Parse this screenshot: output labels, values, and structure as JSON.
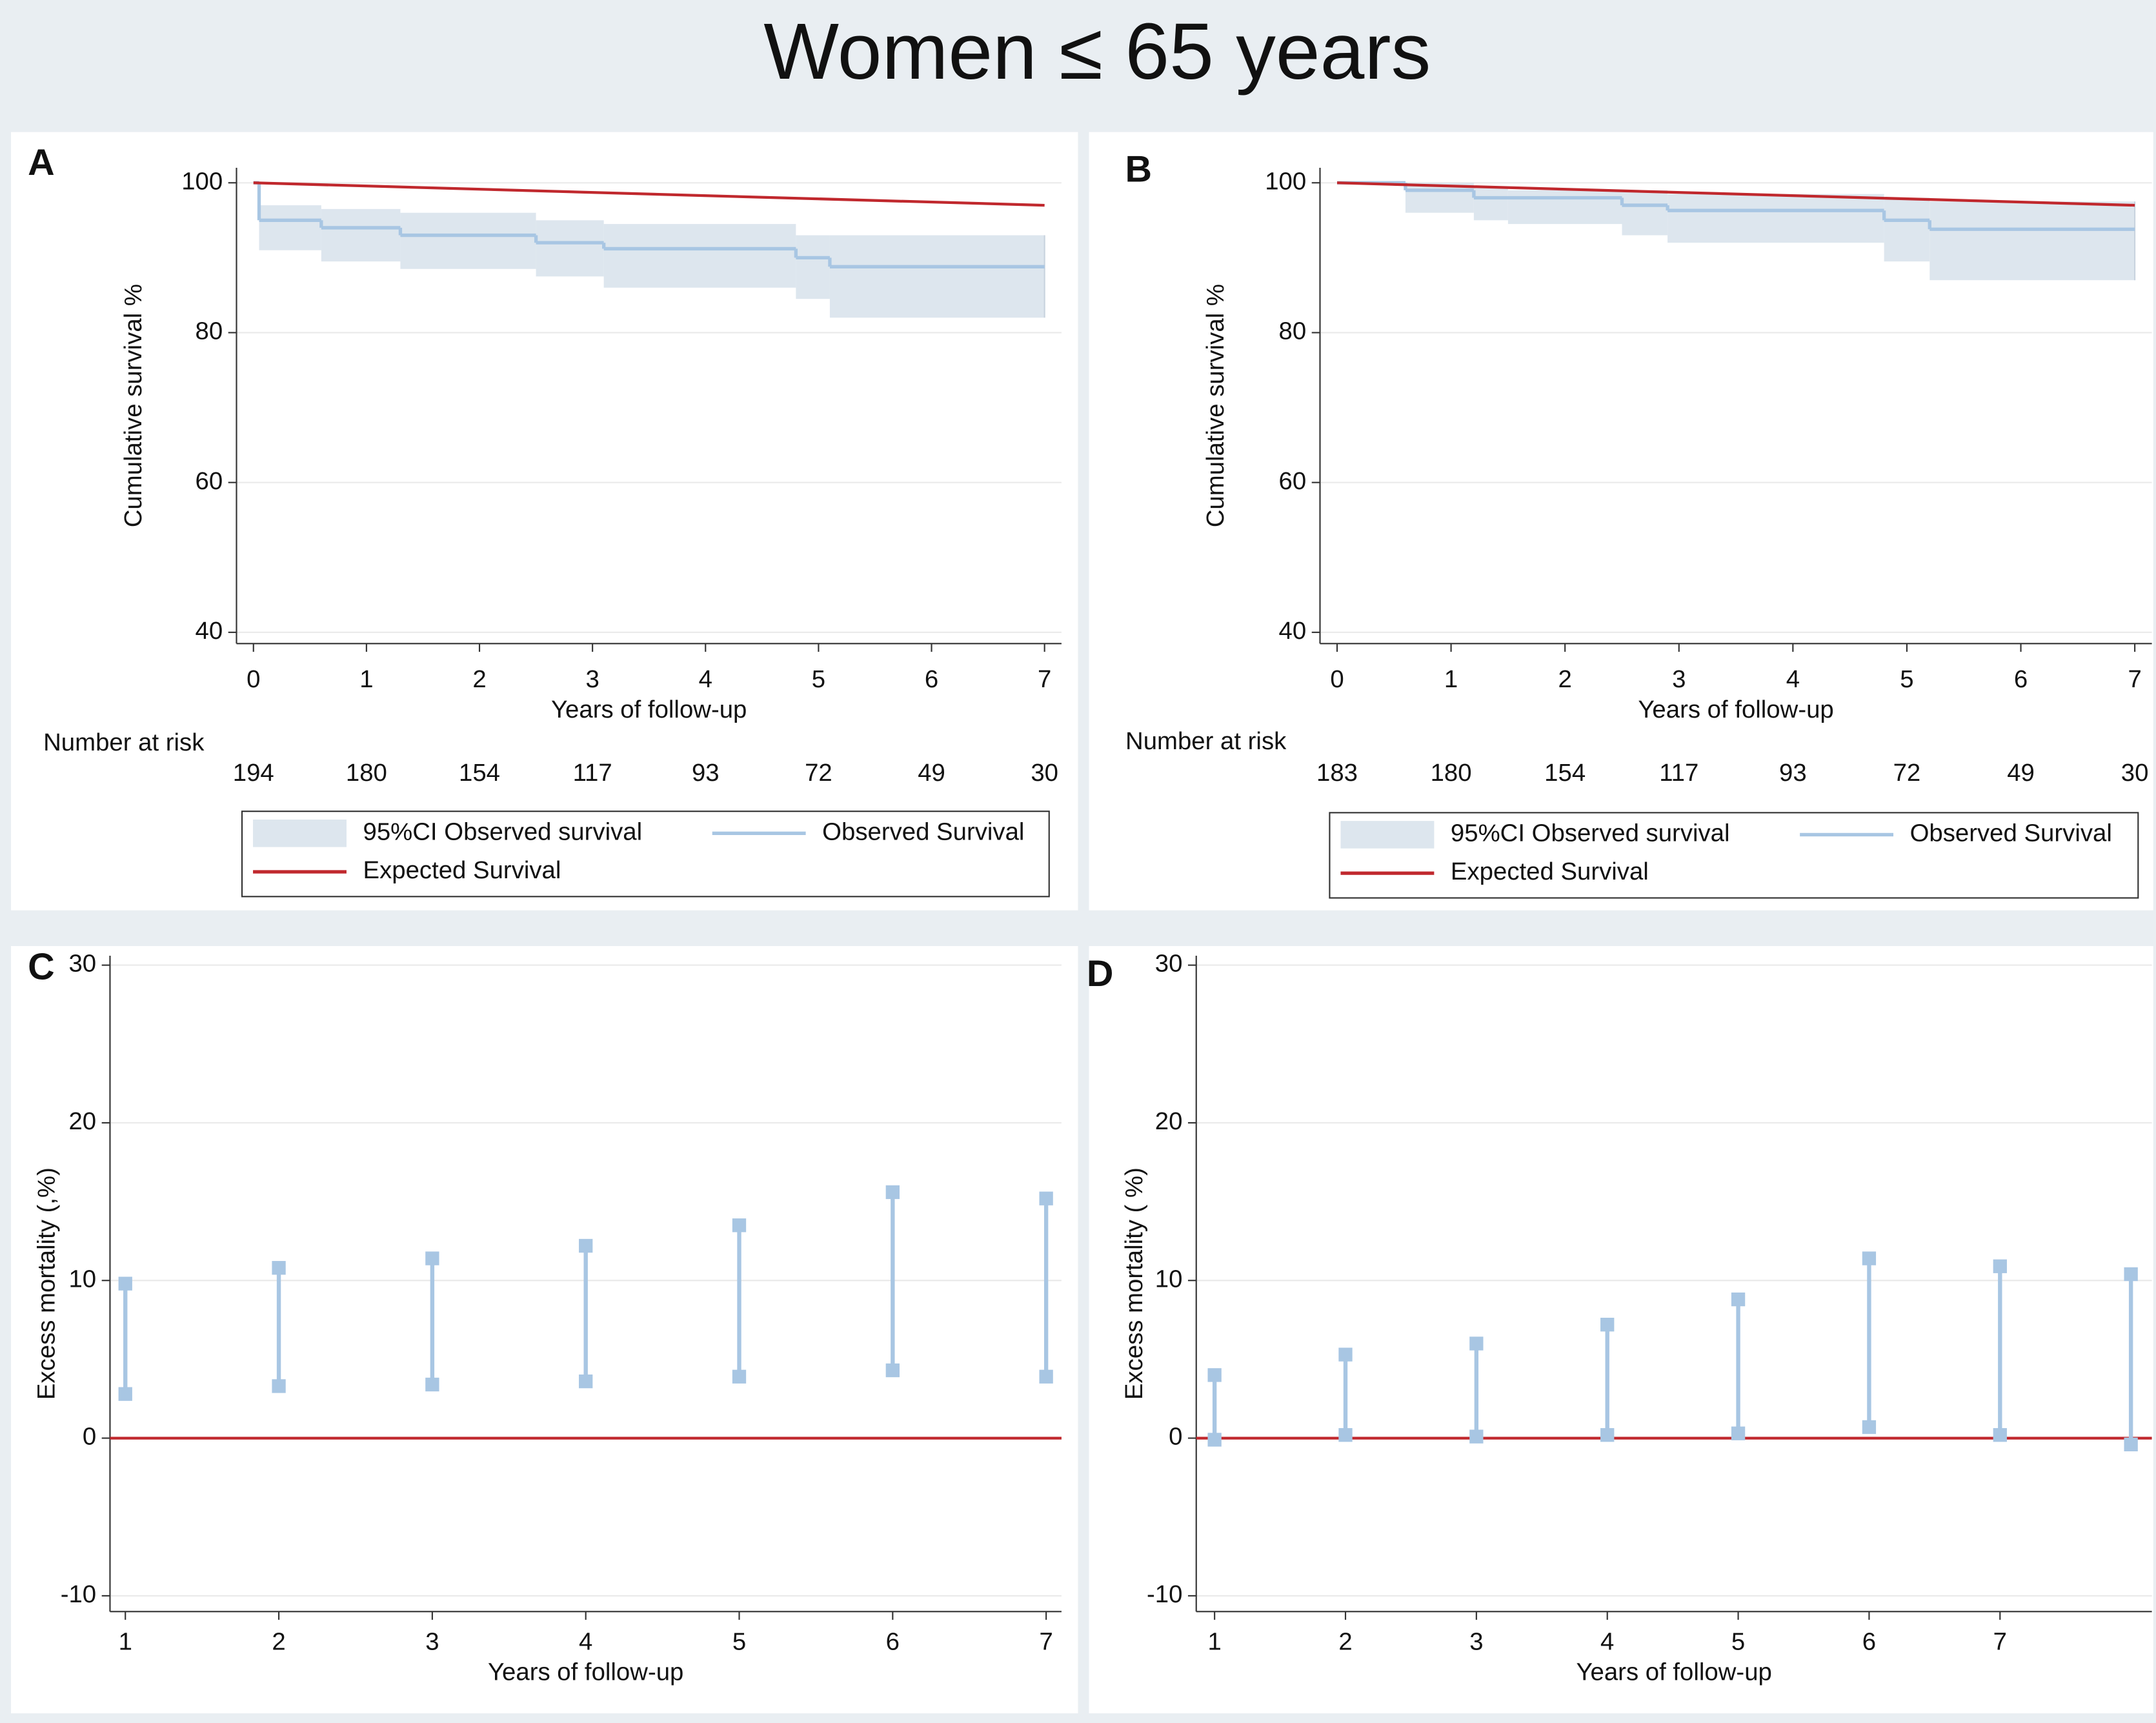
{
  "title": "Women ≤ 65 years",
  "chart_data": [
    {
      "type": "line",
      "panel": "A",
      "y_label": "Cumulative survival %",
      "x_label": "Years of follow-up",
      "xlim": [
        -0.15,
        7.15
      ],
      "xticks": [
        0,
        1,
        2,
        3,
        4,
        5,
        6,
        7
      ],
      "ylim": [
        38.5,
        102
      ],
      "yticks": [
        40,
        60,
        80,
        100
      ],
      "grid": true,
      "series": [
        {
          "name": "95%CI Observed survival",
          "type": "band",
          "color": "#dde6ee",
          "x": [
            0,
            0.05,
            0.6,
            1.3,
            2.5,
            3.1,
            4.8,
            5.1,
            7
          ],
          "lower": [
            100,
            91,
            89.5,
            88.5,
            87.5,
            86,
            84.5,
            82,
            82
          ],
          "upper": [
            100,
            97,
            96.5,
            96,
            95,
            94.5,
            93,
            93,
            93
          ]
        },
        {
          "name": "Observed Survival",
          "type": "step",
          "color": "#a8c6e3",
          "x": [
            0,
            0.05,
            0.6,
            1.3,
            2.5,
            3.1,
            4.8,
            5.1,
            7
          ],
          "values": [
            100,
            95,
            94,
            93,
            92,
            91.2,
            90,
            88.8,
            88.8
          ]
        },
        {
          "name": "Expected Survival",
          "type": "line",
          "color": "#c0282d",
          "x": [
            0,
            7
          ],
          "values": [
            100,
            97
          ]
        }
      ],
      "risk": {
        "label": "Number at risk",
        "values": [
          194,
          180,
          154,
          117,
          93,
          72,
          49,
          30
        ]
      }
    },
    {
      "type": "line",
      "panel": "B",
      "y_label": "Cumulative survival %",
      "x_label": "Years of follow-up",
      "xlim": [
        -0.15,
        7.15
      ],
      "xticks": [
        0,
        1,
        2,
        3,
        4,
        5,
        6,
        7
      ],
      "ylim": [
        38.5,
        102
      ],
      "yticks": [
        40,
        60,
        80,
        100
      ],
      "grid": true,
      "series": [
        {
          "name": "95%CI Observed survival",
          "type": "band",
          "color": "#dde6ee",
          "x": [
            0,
            0.6,
            1.2,
            1.5,
            2.5,
            2.9,
            4.8,
            5.2,
            7
          ],
          "lower": [
            100,
            96,
            95,
            94.5,
            93,
            92,
            89.5,
            87,
            87
          ],
          "upper": [
            100,
            100,
            99.5,
            99,
            99,
            98.5,
            98,
            97.5,
            97.5
          ]
        },
        {
          "name": "Observed Survival",
          "type": "step",
          "color": "#a8c6e3",
          "x": [
            0,
            0.6,
            1.2,
            2.5,
            2.9,
            4.8,
            5.2,
            7
          ],
          "values": [
            100,
            99,
            98,
            97,
            96.3,
            95,
            93.8,
            93.8
          ]
        },
        {
          "name": "Expected Survival",
          "type": "line",
          "color": "#c0282d",
          "x": [
            0,
            7
          ],
          "values": [
            100,
            97
          ]
        }
      ],
      "risk": {
        "label": "Number at risk",
        "values": [
          183,
          180,
          154,
          117,
          93,
          72,
          49,
          30
        ]
      }
    },
    {
      "type": "errorbar",
      "panel": "C",
      "y_label": "Excess mortality (,%)",
      "x_label": "Years of follow-up",
      "xlim": [
        0.9,
        7.1
      ],
      "xticks": [
        1,
        2,
        3,
        4,
        5,
        6,
        7
      ],
      "ylim": [
        -11,
        30.6
      ],
      "yticks": [
        -10,
        0,
        10,
        20,
        30
      ],
      "grid": true,
      "refline": {
        "value": 0,
        "color": "#c0282d"
      },
      "series": [
        {
          "color": "#a8c6e3",
          "x": [
            1,
            2,
            3,
            4,
            5,
            6,
            7
          ],
          "lower": [
            2.8,
            3.3,
            3.4,
            3.6,
            3.9,
            4.3,
            3.9
          ],
          "upper": [
            9.8,
            10.8,
            11.4,
            12.2,
            13.5,
            15.6,
            15.2
          ]
        }
      ]
    },
    {
      "type": "errorbar",
      "panel": "D",
      "y_label": "Excess mortality ( %)",
      "x_label": "Years of follow-up",
      "xlim": [
        0.86,
        8.16
      ],
      "xticks": [
        1,
        2,
        3,
        4,
        5,
        6,
        7
      ],
      "ylim": [
        -11,
        30.6
      ],
      "yticks": [
        -10,
        0,
        10,
        20,
        30
      ],
      "grid": true,
      "refline": {
        "value": 0,
        "color": "#c0282d"
      },
      "series": [
        {
          "color": "#a8c6e3",
          "x": [
            1,
            2,
            3,
            4,
            5,
            6,
            7,
            8
          ],
          "lower": [
            -0.1,
            0.2,
            0.1,
            0.2,
            0.3,
            0.7,
            0.2,
            -0.4
          ],
          "upper": [
            4.0,
            5.3,
            6.0,
            7.2,
            8.8,
            11.4,
            10.9,
            10.4
          ]
        }
      ]
    }
  ]
}
